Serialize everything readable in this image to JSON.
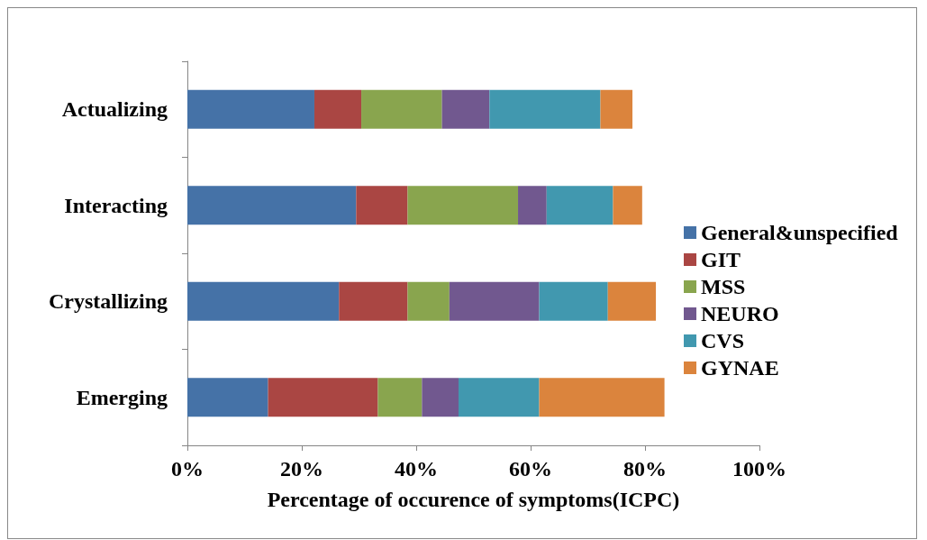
{
  "chart_data": {
    "type": "bar",
    "orientation": "horizontal",
    "stacked": true,
    "xlabel": "Percentage of occurence of symptoms(ICPC)",
    "categories": [
      "Actualizing",
      "Interacting",
      "Crystallizing",
      "Emerging"
    ],
    "series": [
      {
        "name": "General&unspecified",
        "color": "#4572a7",
        "values": [
          22.2,
          29.5,
          26.5,
          14.1
        ]
      },
      {
        "name": "GIT",
        "color": "#aa4643",
        "values": [
          8.2,
          9.0,
          12.0,
          19.2
        ]
      },
      {
        "name": "MSS",
        "color": "#89a54e",
        "values": [
          14.1,
          19.3,
          7.3,
          7.7
        ]
      },
      {
        "name": "NEURO",
        "color": "#71588f",
        "values": [
          8.3,
          5.0,
          15.7,
          6.4
        ]
      },
      {
        "name": "CVS",
        "color": "#4198af",
        "values": [
          19.4,
          11.6,
          12.0,
          14.1
        ]
      },
      {
        "name": "GYNAE",
        "color": "#db843d",
        "values": [
          5.6,
          5.1,
          8.4,
          21.9
        ]
      }
    ],
    "xlim": [
      0,
      100
    ],
    "xticks": [
      {
        "value": 0,
        "label": "0%"
      },
      {
        "value": 20,
        "label": "20%"
      },
      {
        "value": 40,
        "label": "40%"
      },
      {
        "value": 60,
        "label": "60%"
      },
      {
        "value": 80,
        "label": "80%"
      },
      {
        "value": 100,
        "label": "100%"
      }
    ],
    "grid": false,
    "legend": "right"
  }
}
